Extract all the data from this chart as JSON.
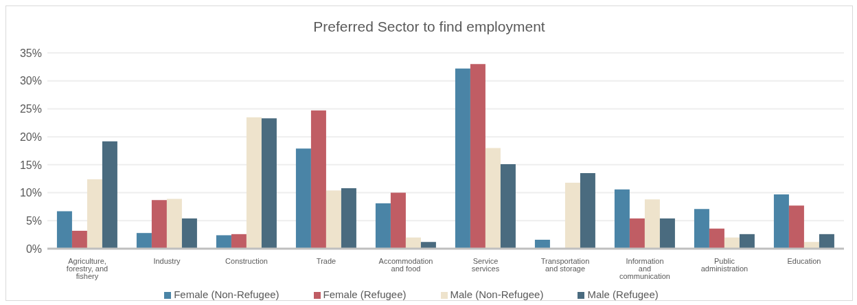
{
  "chart_data": {
    "type": "bar",
    "title": "Preferred Sector to find employment",
    "categories": [
      "Agriculture, forestry,  and fishery",
      "Industry",
      "Construction",
      "Trade",
      "Accommodation and food",
      "Service  services",
      "Transportation and storage",
      "Information  and communication",
      "Public administration",
      "Education"
    ],
    "series": [
      {
        "name": "Female (Non-Refugee)",
        "color": "#4a84a6",
        "values": [
          6.7,
          2.8,
          2.4,
          17.9,
          8.1,
          32.2,
          1.6,
          10.6,
          7.1,
          9.7
        ]
      },
      {
        "name": "Female (Refugee)",
        "color": "#c05d64",
        "values": [
          3.2,
          8.7,
          2.6,
          24.7,
          10.0,
          33.0,
          0,
          5.4,
          3.6,
          7.7
        ]
      },
      {
        "name": "Male (Non-Refugee)",
        "color": "#eee3cc",
        "values": [
          12.4,
          8.9,
          23.5,
          10.4,
          2.0,
          18.0,
          11.8,
          8.8,
          2.0,
          1.2
        ]
      },
      {
        "name": "Male (Refugee)",
        "color": "#4a6b7f",
        "values": [
          19.2,
          5.4,
          23.3,
          10.8,
          1.2,
          15.1,
          13.5,
          5.4,
          2.6,
          2.6
        ]
      }
    ],
    "ylim": [
      0,
      35
    ],
    "yticks": [
      {
        "value": 0,
        "label": "0%"
      },
      {
        "value": 5,
        "label": "5%"
      },
      {
        "value": 10,
        "label": "10%"
      },
      {
        "value": 15,
        "label": "15%"
      },
      {
        "value": 20,
        "label": "20%"
      },
      {
        "value": 25,
        "label": "25%"
      },
      {
        "value": 30,
        "label": "30%"
      },
      {
        "value": 35,
        "label": "35%"
      }
    ],
    "grid": "y",
    "legend": "bottom"
  }
}
